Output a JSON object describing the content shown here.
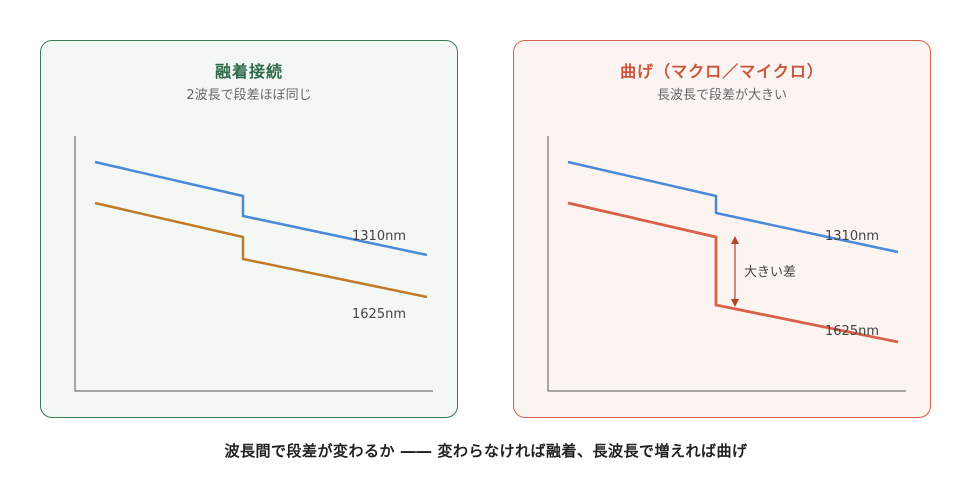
{
  "panels": {
    "left": {
      "title": "融着接続",
      "subtitle": "2波長で段差ほぼ同じ",
      "label_1310": "1310nm",
      "label_1625": "1625nm",
      "color_1310": "#4a8ad8",
      "color_1625": "#c07a28",
      "border_color": "#3b7a57"
    },
    "right": {
      "title": "曲げ（マクロ／マイクロ）",
      "subtitle": "長波長で段差が大きい",
      "label_1310": "1310nm",
      "label_1625": "1625nm",
      "annotation": "大きい差",
      "color_1310": "#4a8ad8",
      "color_1625": "#d9614a",
      "arrow_color": "#b4432e",
      "border_color": "#d9614a"
    }
  },
  "caption": "波長間で段差が変わるか ―― 変わらなければ融着、長波長で増えれば曲げ"
}
